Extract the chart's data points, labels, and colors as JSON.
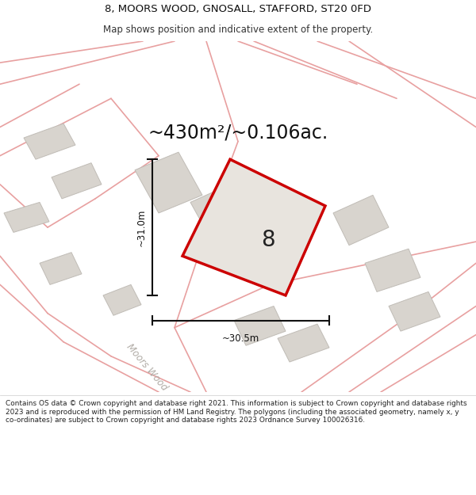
{
  "title_line1": "8, MOORS WOOD, GNOSALL, STAFFORD, ST20 0FD",
  "title_line2": "Map shows position and indicative extent of the property.",
  "area_text": "~430m²/~0.106ac.",
  "plot_number": "8",
  "width_label": "~30.5m",
  "height_label": "~31.0m",
  "road_label": "Moors Wood",
  "footer_text": "Contains OS data © Crown copyright and database right 2021. This information is subject to Crown copyright and database rights 2023 and is reproduced with the permission of HM Land Registry. The polygons (including the associated geometry, namely x, y co-ordinates) are subject to Crown copyright and database rights 2023 Ordnance Survey 100026316.",
  "bg_color": "#f7f5f2",
  "map_bg_color": "#f0ede8",
  "plot_fill": "#e8e4de",
  "plot_edge": "#cc0000",
  "building_fill": "#d8d4ce",
  "building_edge": "#c0bcb6",
  "road_line_color": "#e8a0a0",
  "dim_line_color": "#111111",
  "text_color": "#111111",
  "road_label_color": "#b0aba5",
  "header_footer_bg": "#ffffff"
}
